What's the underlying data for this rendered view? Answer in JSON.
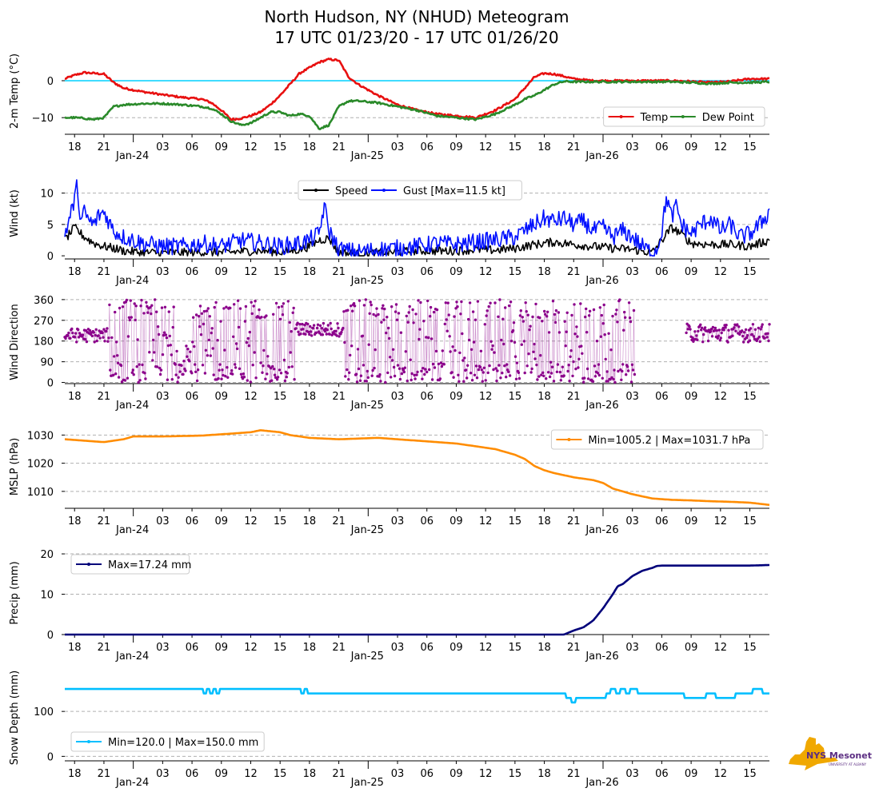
{
  "header": {
    "title_line1": "North Hudson, NY (NHUD) Meteogram",
    "title_line2": "17 UTC 01/23/20 - 17 UTC 01/26/20"
  },
  "logo": {
    "text": "NYS Mesonet",
    "subtext": "UNIVERSITY AT ALBANY",
    "color_map": "#f0a800",
    "color_text": "#5b2d82"
  },
  "time_axis": {
    "hour_ticks": [
      {
        "t": 1,
        "label": "18"
      },
      {
        "t": 4,
        "label": "21"
      },
      {
        "t": 10,
        "label": "03"
      },
      {
        "t": 13,
        "label": "06"
      },
      {
        "t": 16,
        "label": "09"
      },
      {
        "t": 19,
        "label": "12"
      },
      {
        "t": 22,
        "label": "15"
      },
      {
        "t": 25,
        "label": "18"
      },
      {
        "t": 28,
        "label": "21"
      },
      {
        "t": 34,
        "label": "03"
      },
      {
        "t": 37,
        "label": "06"
      },
      {
        "t": 40,
        "label": "09"
      },
      {
        "t": 43,
        "label": "12"
      },
      {
        "t": 46,
        "label": "15"
      },
      {
        "t": 49,
        "label": "18"
      },
      {
        "t": 52,
        "label": "21"
      },
      {
        "t": 58,
        "label": "03"
      },
      {
        "t": 61,
        "label": "06"
      },
      {
        "t": 64,
        "label": "09"
      },
      {
        "t": 67,
        "label": "12"
      },
      {
        "t": 70,
        "label": "15"
      }
    ],
    "day_ticks": [
      {
        "t": 7,
        "label": "Jan-24"
      },
      {
        "t": 31,
        "label": "Jan-25"
      },
      {
        "t": 55,
        "label": "Jan-26"
      }
    ],
    "range_hours": [
      0,
      72
    ]
  },
  "chart_data": [
    {
      "type": "line",
      "ylabel": "2-m Temp ($^\\circ$C)",
      "ylabel_display": "2-m Temp (°C)",
      "ylim": [
        -14.5,
        8
      ],
      "yticks": [
        {
          "v": 0,
          "label": "0"
        },
        {
          "v": -10,
          "label": "−10"
        }
      ],
      "grid_values": [
        -10
      ],
      "hline": {
        "value": 0,
        "color": "#00d0ff"
      },
      "legend": {
        "position": "lower-right"
      },
      "series": [
        {
          "name": "Temp",
          "color": "#e81010",
          "x": [
            0,
            1,
            2,
            3,
            4,
            5,
            6,
            8,
            10,
            12,
            14,
            15,
            16,
            17,
            18,
            19,
            20,
            21,
            22,
            23,
            24,
            25,
            26,
            27,
            28,
            29,
            30,
            32,
            34,
            36,
            38,
            40,
            42,
            44,
            46,
            47,
            48,
            49,
            50,
            51,
            52,
            54,
            56,
            58,
            60,
            62,
            64,
            66,
            68,
            70,
            72
          ],
          "y": [
            0.5,
            1.5,
            2.2,
            2,
            1.8,
            -0.5,
            -2,
            -3,
            -3.8,
            -4.5,
            -5,
            -6,
            -8,
            -10.5,
            -10.2,
            -9.5,
            -8.5,
            -6.5,
            -4,
            -1,
            2,
            3.5,
            5,
            5.8,
            5.5,
            1,
            -1,
            -4,
            -6.5,
            -8,
            -9,
            -9.5,
            -10,
            -8,
            -5,
            -2,
            1,
            2,
            1.8,
            1.2,
            0.5,
            0,
            0,
            0,
            0,
            0,
            -0.2,
            -0.5,
            -0.2,
            0.5,
            0.5
          ]
        },
        {
          "name": "Dew Point",
          "color": "#2a8a2a",
          "x": [
            0,
            1,
            2,
            3,
            4,
            5,
            6,
            8,
            10,
            12,
            14,
            15,
            16,
            17,
            18,
            19,
            20,
            21,
            22,
            23,
            24,
            25,
            26,
            27,
            28,
            29,
            30,
            32,
            34,
            36,
            38,
            40,
            42,
            44,
            46,
            47,
            48,
            49,
            50,
            51,
            52,
            54,
            56,
            58,
            60,
            62,
            64,
            66,
            68,
            70,
            72
          ],
          "y": [
            -10,
            -10,
            -10.2,
            -10.5,
            -10,
            -7,
            -6.5,
            -6.2,
            -6.2,
            -6.5,
            -7,
            -7.5,
            -9,
            -11,
            -12,
            -11.5,
            -10,
            -8.5,
            -8.5,
            -9.5,
            -9,
            -9.5,
            -13,
            -12,
            -7,
            -5.5,
            -5.5,
            -6,
            -7,
            -8,
            -9.5,
            -10,
            -10.5,
            -9,
            -6.5,
            -5,
            -4,
            -2.5,
            -1,
            -0.2,
            -0.3,
            -0.3,
            -0.3,
            -0.3,
            -0.3,
            -0.3,
            -0.5,
            -0.8,
            -0.5,
            -0.5,
            -0.3
          ]
        }
      ]
    },
    {
      "type": "line",
      "ylabel": "Wind (kt)",
      "ylim": [
        -0.5,
        12.5
      ],
      "yticks": [
        {
          "v": 0,
          "label": "0"
        },
        {
          "v": 5,
          "label": "5"
        },
        {
          "v": 10,
          "label": "10"
        }
      ],
      "grid_values": [
        5,
        10
      ],
      "legend": {
        "position": "top-center"
      },
      "series": [
        {
          "name": "Speed",
          "color": "#000000",
          "x": [
            0,
            1,
            2,
            3,
            4,
            5,
            6,
            8,
            10,
            12,
            14,
            16,
            18,
            20,
            22,
            24,
            25,
            26,
            27,
            28,
            30,
            32,
            34,
            36,
            38,
            40,
            42,
            44,
            46,
            48,
            50,
            52,
            54,
            56,
            58,
            60,
            61,
            62,
            63,
            64,
            66,
            68,
            70,
            72
          ],
          "y": [
            2.5,
            4.5,
            3,
            2,
            1.5,
            1.2,
            0.8,
            0.5,
            0.5,
            0.5,
            0.6,
            0.5,
            0.7,
            0.8,
            0.6,
            1,
            1.5,
            2.5,
            2.8,
            0.5,
            0.3,
            0.5,
            0.6,
            0.8,
            0.8,
            0.8,
            1,
            0.9,
            1.2,
            1.8,
            2.2,
            1.8,
            1.5,
            1.2,
            1,
            0.5,
            2.5,
            4.5,
            3.5,
            2,
            1.8,
            1.8,
            1.5,
            2.5
          ]
        },
        {
          "name": "Gust [Max=11.5 kt]",
          "color": "#0010ff",
          "x": [
            0,
            0.5,
            1,
            1.3,
            1.6,
            2,
            2.5,
            3,
            3.5,
            4,
            5,
            6,
            7,
            8,
            10,
            12,
            14,
            16,
            18,
            20,
            22,
            24,
            25,
            26,
            26.5,
            27,
            28,
            29,
            30,
            32,
            34,
            36,
            38,
            40,
            42,
            44,
            46,
            47,
            48,
            49,
            50,
            51,
            52,
            53,
            54,
            55,
            56,
            57,
            58,
            59,
            60,
            60.5,
            61,
            61.5,
            62,
            62.5,
            63,
            64,
            65,
            66,
            67,
            68,
            69,
            70,
            71,
            72
          ],
          "y": [
            3.5,
            6,
            9,
            11.5,
            5,
            7,
            5.5,
            5,
            6.5,
            7,
            4,
            3,
            2.5,
            2,
            1.5,
            1.5,
            2,
            1.5,
            2.5,
            2,
            1.5,
            2,
            2.5,
            3.5,
            8,
            4,
            1,
            0.8,
            0.6,
            1,
            1.2,
            1.5,
            2,
            1.8,
            2.2,
            2.5,
            3,
            4,
            5,
            6,
            5.5,
            6,
            5,
            5.5,
            4,
            4.5,
            3,
            4,
            3,
            1.5,
            0.5,
            1,
            4,
            9.5,
            6,
            8,
            5,
            3.5,
            5,
            6,
            4,
            5,
            3,
            3.5,
            5,
            7
          ]
        }
      ]
    },
    {
      "type": "scatter",
      "ylabel": "Wind Direction",
      "ylim": [
        -5,
        370
      ],
      "yticks": [
        {
          "v": 0,
          "label": "0"
        },
        {
          "v": 90,
          "label": "90"
        },
        {
          "v": 180,
          "label": "180"
        },
        {
          "v": 270,
          "label": "270"
        },
        {
          "v": 360,
          "label": "360"
        }
      ],
      "grid_values": [
        0,
        90,
        180,
        270,
        360
      ],
      "gap_hours": [
        [
          58.3,
          63.5
        ]
      ],
      "series": [
        {
          "name": "Wind Direction",
          "color": "#8b008b",
          "segments": [
            {
              "t0": 0,
              "t1": 4.5,
              "mean": 205,
              "spread": 30
            },
            {
              "t0": 4.5,
              "t1": 23.5,
              "mean": "variable",
              "spread": 0
            },
            {
              "t0": 23.5,
              "t1": 28.5,
              "mean": 230,
              "spread": 30
            },
            {
              "t0": 28.5,
              "t1": 58.3,
              "mean": "variable",
              "spread": 0
            },
            {
              "t0": 63.5,
              "t1": 72,
              "mean": 215,
              "spread": 40
            }
          ]
        }
      ]
    },
    {
      "type": "line",
      "ylabel": "MSLP (hPa)",
      "ylim": [
        1004,
        1033.5
      ],
      "yticks": [
        {
          "v": 1010,
          "label": "1010"
        },
        {
          "v": 1020,
          "label": "1020"
        },
        {
          "v": 1030,
          "label": "1030"
        }
      ],
      "grid_values": [
        1010,
        1020,
        1030
      ],
      "legend": {
        "position": "top-right"
      },
      "series": [
        {
          "name": "Min=1005.2 | Max=1031.7 hPa",
          "color": "#ff8c00",
          "x": [
            0,
            2,
            4,
            6,
            7,
            10,
            14,
            17,
            19,
            20,
            22,
            23,
            25,
            28,
            32,
            34,
            38,
            40,
            42,
            44,
            45,
            46,
            47,
            48,
            49,
            50,
            52,
            54,
            55,
            56,
            58,
            60,
            62,
            64,
            66,
            68,
            70,
            71,
            72
          ],
          "y": [
            1028.5,
            1028,
            1027.5,
            1028.5,
            1029.5,
            1029.5,
            1029.8,
            1030.5,
            1031,
            1031.7,
            1031,
            1030,
            1029,
            1028.5,
            1029,
            1028.5,
            1027.5,
            1027,
            1026,
            1025,
            1024,
            1023,
            1021.5,
            1019,
            1017.5,
            1016.5,
            1015,
            1014,
            1013,
            1011,
            1009,
            1007.5,
            1007,
            1006.8,
            1006.5,
            1006.3,
            1006,
            1005.6,
            1005.2
          ]
        }
      ]
    },
    {
      "type": "line",
      "ylabel": "Precip (mm)",
      "ylim": [
        0,
        21
      ],
      "yticks": [
        {
          "v": 0,
          "label": "0"
        },
        {
          "v": 10,
          "label": "10"
        },
        {
          "v": 20,
          "label": "20"
        }
      ],
      "grid_values": [
        10,
        20
      ],
      "legend": {
        "position": "top-left"
      },
      "series": [
        {
          "name": "Max=17.24 mm",
          "color": "#00007a",
          "x": [
            0,
            51,
            52,
            53,
            54,
            55,
            56,
            56.5,
            57,
            58,
            59,
            60,
            60.5,
            61,
            66,
            70,
            72
          ],
          "y": [
            0,
            0,
            1,
            1.8,
            3.5,
            6.5,
            10,
            12,
            12.5,
            14.5,
            15.8,
            16.5,
            17,
            17.1,
            17.1,
            17.1,
            17.24
          ]
        }
      ]
    },
    {
      "type": "line",
      "ylabel": "Snow Depth (mm)",
      "ylim": [
        -10,
        175
      ],
      "yticks": [
        {
          "v": 0,
          "label": "0"
        },
        {
          "v": 100,
          "label": "100"
        }
      ],
      "grid_values": [
        0,
        100
      ],
      "legend": {
        "position": "lower-left"
      },
      "series": [
        {
          "name": "Min=120.0 | Max=150.0 mm",
          "color": "#00bfff",
          "x": [
            0,
            14,
            14.3,
            14.6,
            15,
            15.3,
            15.6,
            16,
            16.3,
            24,
            24.3,
            24.6,
            25,
            25.3,
            51,
            51.5,
            52,
            52.5,
            53,
            53.5,
            55,
            55.5,
            56,
            56.5,
            57,
            57.5,
            58,
            59,
            60,
            61,
            63,
            63.5,
            65,
            66,
            67,
            68,
            69,
            70,
            70.5,
            72
          ],
          "y": [
            150,
            150,
            140,
            150,
            140,
            150,
            140,
            150,
            150,
            150,
            140,
            150,
            140,
            140,
            140,
            130,
            120,
            130,
            130,
            130,
            130,
            140,
            150,
            140,
            150,
            140,
            150,
            140,
            140,
            140,
            140,
            130,
            130,
            140,
            130,
            130,
            140,
            140,
            150,
            140
          ]
        }
      ]
    }
  ]
}
